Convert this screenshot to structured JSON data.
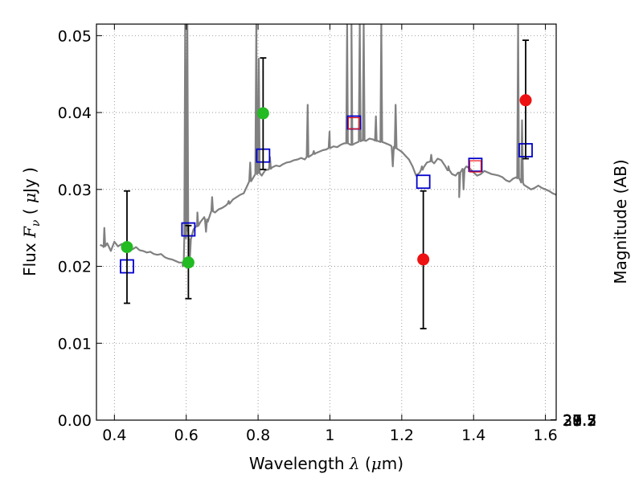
{
  "chart_data": {
    "type": "scatter",
    "xlabel": {
      "prefix": "Wavelength",
      "var": "λ",
      "unit_open": "(",
      "unit_mu": "μ",
      "unit_rest": "m)"
    },
    "ylabel": {
      "prefix": "Flux",
      "var": "F",
      "sub": "ν",
      "unit_open": "(",
      "unit_mu": "μ",
      "unit_rest": "Jy )"
    },
    "y2label": "Magnitude (AB)",
    "xlim": [
      0.35,
      1.63
    ],
    "ylim": [
      0.0,
      0.0515
    ],
    "x_ticks": [
      0.4,
      0.6,
      0.8,
      1.0,
      1.2,
      1.4,
      1.6
    ],
    "x_tick_labels": [
      "0.4",
      "0.6",
      "0.8",
      "1",
      "1.2",
      "1.4",
      "1.6"
    ],
    "y_ticks": [
      0.0,
      0.01,
      0.02,
      0.03,
      0.04,
      0.05
    ],
    "y_tick_labels": [
      "0.00",
      "0.01",
      "0.02",
      "0.03",
      "0.04",
      "0.05"
    ],
    "y2_tick_labels": [
      "27.2",
      "27.3",
      "27.5",
      "27.7",
      "28",
      "28.2",
      "28.5",
      "29",
      "29.5",
      "30",
      "31"
    ],
    "y2_tick_mags": [
      27.2,
      27.3,
      27.5,
      27.7,
      28.0,
      28.2,
      28.5,
      29.0,
      29.5,
      30.0,
      31.0
    ],
    "grid": true,
    "colors": {
      "spectrum": "#808080",
      "green_points": "#22bb22",
      "red_points": "#ee1111",
      "model_squares": "#0000cc",
      "red_squares": "#ee1111",
      "errorbar": "#000000",
      "grid": "#888888"
    },
    "series": [
      {
        "color": "green",
        "points": [
          {
            "x": 0.435,
            "y": 0.0225,
            "yerr_low": 0.0152,
            "yerr_high": 0.0298
          },
          {
            "x": 0.606,
            "y": 0.0205,
            "yerr_low": 0.0158,
            "yerr_high": 0.0253
          },
          {
            "x": 0.814,
            "y": 0.0399,
            "yerr_low": 0.0326,
            "yerr_high": 0.0471
          }
        ]
      },
      {
        "color": "red",
        "points": [
          {
            "x": 1.26,
            "y": 0.0209,
            "yerr_low": 0.0119,
            "yerr_high": 0.0298
          },
          {
            "x": 1.545,
            "y": 0.0416,
            "yerr_low": 0.034,
            "yerr_high": 0.0494
          }
        ]
      },
      {
        "color": "blue-square",
        "points": [
          {
            "x": 0.435,
            "y": 0.02
          },
          {
            "x": 0.606,
            "y": 0.0248
          },
          {
            "x": 0.814,
            "y": 0.0344
          },
          {
            "x": 1.067,
            "y": 0.0387
          },
          {
            "x": 1.26,
            "y": 0.031
          },
          {
            "x": 1.405,
            "y": 0.0332
          },
          {
            "x": 1.545,
            "y": 0.0351
          }
        ]
      },
      {
        "color": "red-square",
        "points": [
          {
            "x": 1.067,
            "y": 0.0386
          },
          {
            "x": 1.405,
            "y": 0.033
          }
        ]
      },
      {
        "color": "gray-spectrum",
        "type": "line",
        "x": [
          0.36,
          0.37,
          0.38,
          0.39,
          0.4,
          0.41,
          0.42,
          0.43,
          0.44,
          0.45,
          0.46,
          0.47,
          0.48,
          0.49,
          0.5,
          0.51,
          0.52,
          0.53,
          0.54,
          0.55,
          0.56,
          0.57,
          0.58,
          0.59,
          0.6,
          0.61,
          0.62,
          0.63,
          0.64,
          0.65,
          0.66,
          0.67,
          0.68,
          0.69,
          0.7,
          0.71,
          0.72,
          0.73,
          0.74,
          0.75,
          0.76,
          0.77,
          0.78,
          0.79,
          0.8,
          0.81,
          0.82,
          0.83,
          0.84,
          0.85,
          0.86,
          0.87,
          0.88,
          0.89,
          0.9,
          0.91,
          0.92,
          0.93,
          0.94,
          0.95,
          0.96,
          0.97,
          0.98,
          0.99,
          1.0,
          1.01,
          1.02,
          1.03,
          1.04,
          1.05,
          1.06,
          1.07,
          1.08,
          1.09,
          1.1,
          1.11,
          1.12,
          1.13,
          1.14,
          1.15,
          1.16,
          1.17,
          1.18,
          1.19,
          1.2,
          1.21,
          1.22,
          1.23,
          1.24,
          1.25,
          1.26,
          1.27,
          1.28,
          1.29,
          1.3,
          1.31,
          1.32,
          1.33,
          1.34,
          1.35,
          1.36,
          1.37,
          1.38,
          1.39,
          1.4,
          1.41,
          1.42,
          1.43,
          1.44,
          1.45,
          1.46,
          1.47,
          1.48,
          1.49,
          1.5,
          1.51,
          1.52,
          1.53,
          1.54,
          1.55,
          1.56,
          1.57,
          1.58,
          1.59,
          1.6,
          1.61,
          1.62,
          1.63
        ],
        "y": [
          0.0228,
          0.0225,
          0.023,
          0.022,
          0.0232,
          0.0226,
          0.0229,
          0.0224,
          0.0227,
          0.0222,
          0.0225,
          0.0221,
          0.022,
          0.0218,
          0.0219,
          0.0216,
          0.0215,
          0.0216,
          0.0212,
          0.021,
          0.0209,
          0.0207,
          0.0205,
          0.0205,
          0.025,
          0.0235,
          0.0248,
          0.0252,
          0.0258,
          0.0264,
          0.0258,
          0.0272,
          0.027,
          0.0274,
          0.0276,
          0.0279,
          0.0282,
          0.0287,
          0.029,
          0.0293,
          0.0295,
          0.0305,
          0.0312,
          0.0318,
          0.0322,
          0.0318,
          0.0325,
          0.0326,
          0.0329,
          0.0331,
          0.033,
          0.0333,
          0.0335,
          0.0336,
          0.0338,
          0.0339,
          0.0341,
          0.0339,
          0.0343,
          0.0345,
          0.0347,
          0.0349,
          0.0351,
          0.0352,
          0.0354,
          0.0356,
          0.0355,
          0.0358,
          0.036,
          0.036,
          0.0358,
          0.036,
          0.0362,
          0.0364,
          0.0363,
          0.0366,
          0.0365,
          0.0363,
          0.0362,
          0.0361,
          0.0359,
          0.0357,
          0.0354,
          0.0352,
          0.0349,
          0.0344,
          0.0339,
          0.033,
          0.0318,
          0.0322,
          0.0328,
          0.0335,
          0.0337,
          0.0334,
          0.034,
          0.0338,
          0.0331,
          0.0325,
          0.032,
          0.0318,
          0.0322,
          0.0326,
          0.033,
          0.0327,
          0.0322,
          0.0318,
          0.032,
          0.0324,
          0.0322,
          0.032,
          0.0319,
          0.0318,
          0.0316,
          0.0312,
          0.031,
          0.0314,
          0.0316,
          0.0312,
          0.0306,
          0.0303,
          0.03,
          0.0302,
          0.0305,
          0.0302,
          0.03,
          0.0298,
          0.0295,
          0.0293
        ],
        "emission_peaks": [
          {
            "x": 0.372,
            "top": 0.025
          },
          {
            "x": 0.597,
            "top": 0.0515
          },
          {
            "x": 0.603,
            "top": 0.0515
          },
          {
            "x": 0.631,
            "top": 0.027
          },
          {
            "x": 0.672,
            "top": 0.029
          },
          {
            "x": 0.718,
            "top": 0.0285
          },
          {
            "x": 0.778,
            "top": 0.0335
          },
          {
            "x": 0.795,
            "top": 0.0515
          },
          {
            "x": 0.802,
            "top": 0.047
          },
          {
            "x": 0.833,
            "top": 0.0342
          },
          {
            "x": 0.938,
            "top": 0.041
          },
          {
            "x": 0.955,
            "top": 0.035
          },
          {
            "x": 0.999,
            "top": 0.0375
          },
          {
            "x": 1.048,
            "top": 0.0515
          },
          {
            "x": 1.06,
            "top": 0.0515
          },
          {
            "x": 1.083,
            "top": 0.0515
          },
          {
            "x": 1.094,
            "top": 0.0515
          },
          {
            "x": 1.128,
            "top": 0.0395
          },
          {
            "x": 1.143,
            "top": 0.0515
          },
          {
            "x": 1.183,
            "top": 0.041
          },
          {
            "x": 1.256,
            "top": 0.033
          },
          {
            "x": 1.282,
            "top": 0.0345
          },
          {
            "x": 1.33,
            "top": 0.033
          },
          {
            "x": 1.524,
            "top": 0.0515
          },
          {
            "x": 1.535,
            "top": 0.039
          }
        ],
        "absorption_dips": [
          {
            "x": 0.59,
            "bottom": 0.02
          },
          {
            "x": 0.61,
            "bottom": 0.021
          },
          {
            "x": 0.655,
            "bottom": 0.0245
          },
          {
            "x": 1.175,
            "bottom": 0.033
          },
          {
            "x": 1.36,
            "bottom": 0.029
          },
          {
            "x": 1.372,
            "bottom": 0.03
          }
        ]
      }
    ]
  }
}
